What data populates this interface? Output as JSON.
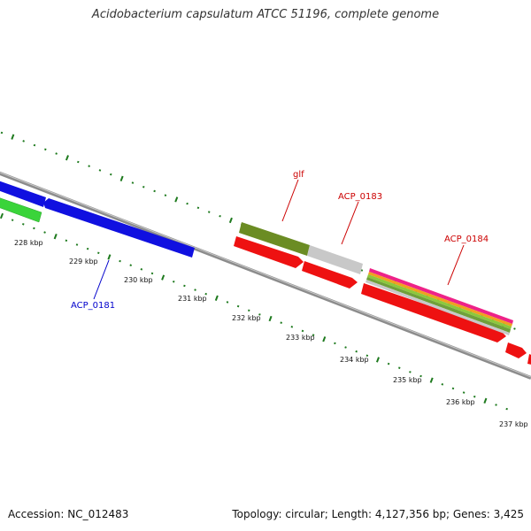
{
  "title": "Acidobacterium capsulatum ATCC 51196, complete genome",
  "footer": {
    "accession": "Accession: NC_012483",
    "summary": "Topology: circular; Length: 4,127,356 bp; Genes: 3,425"
  },
  "scale_labels": [
    "228 kbp",
    "229 kbp",
    "230 kbp",
    "231 kbp",
    "232 kbp",
    "233 kbp",
    "234 kbp",
    "235 kbp",
    "236 kbp",
    "237 kbp"
  ],
  "gene_labels": [
    {
      "text": "glf",
      "color": "#cc0000"
    },
    {
      "text": "ACP_0183",
      "color": "#cc0000"
    },
    {
      "text": "ACP_0184",
      "color": "#cc0000"
    },
    {
      "text": "ACP_0181",
      "color": "#0000cc"
    }
  ],
  "colors": {
    "backbone": "#8c8c8c",
    "tick": "#1e7a1e",
    "forward_gene": "#1010e0",
    "reverse_gene": "#ee1111",
    "rna_gene": "#3ad43a",
    "glf_gene": "#6b8c23",
    "pseudo_gene": "#c8c8c8"
  }
}
